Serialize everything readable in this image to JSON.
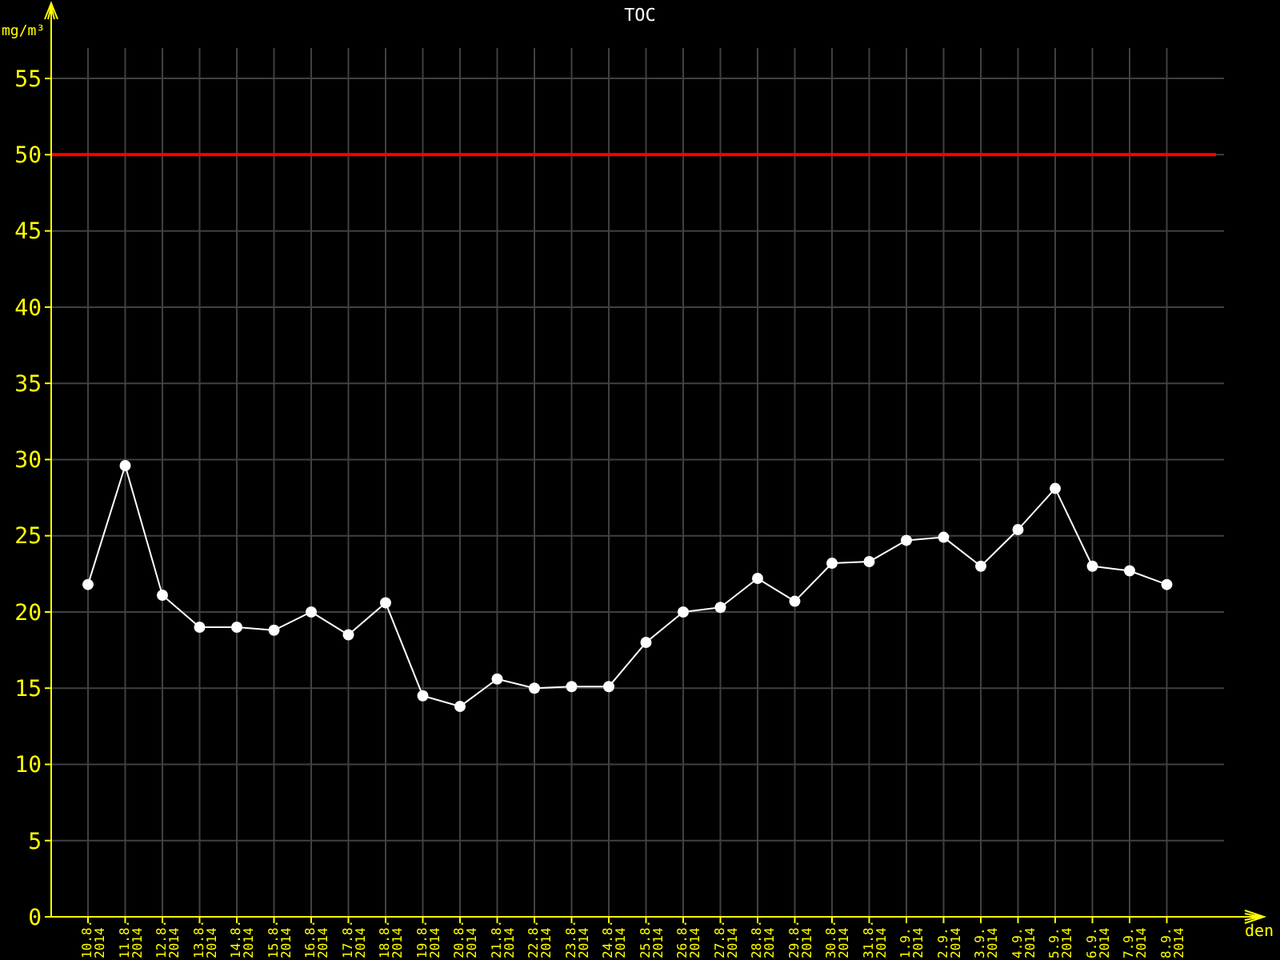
{
  "chart_data": {
    "type": "line",
    "title": "TOC",
    "xlabel": "den",
    "ylabel": "mg/m³",
    "categories": [
      "10.8. 2014",
      "11.8. 2014",
      "12.8. 2014",
      "13.8. 2014",
      "14.8. 2014",
      "15.8. 2014",
      "16.8. 2014",
      "17.8. 2014",
      "18.8. 2014",
      "19.8. 2014",
      "20.8. 2014",
      "21.8. 2014",
      "22.8. 2014",
      "23.8. 2014",
      "24.8. 2014",
      "25.8. 2014",
      "26.8. 2014",
      "27.8. 2014",
      "28.8. 2014",
      "29.8. 2014",
      "30.8. 2014",
      "31.8. 2014",
      "1.9. 2014",
      "2.9. 2014",
      "3.9. 2014",
      "4.9. 2014",
      "5.9. 2014",
      "6.9. 2014",
      "7.9. 2014",
      "8.9. 2014"
    ],
    "series": [
      {
        "color": "#ffffff",
        "values": [
          21.8,
          29.6,
          21.1,
          19.0,
          19.0,
          18.8,
          20.0,
          18.5,
          20.6,
          14.5,
          13.8,
          15.6,
          15.0,
          15.1,
          15.1,
          18.0,
          20.0,
          20.3,
          22.2,
          20.7,
          23.2,
          23.3,
          24.7,
          24.9,
          23.0,
          25.4,
          28.1,
          23.0,
          22.7,
          21.8
        ]
      }
    ],
    "ylim": [
      0,
      57
    ],
    "yticks": [
      0,
      5,
      10,
      15,
      20,
      25,
      30,
      35,
      40,
      45,
      50,
      55
    ],
    "grid": true,
    "marker": "circle",
    "line_style": "solid",
    "ref_lines": [
      {
        "axis": "y",
        "value": 50,
        "color": "#ff0000"
      }
    ]
  }
}
